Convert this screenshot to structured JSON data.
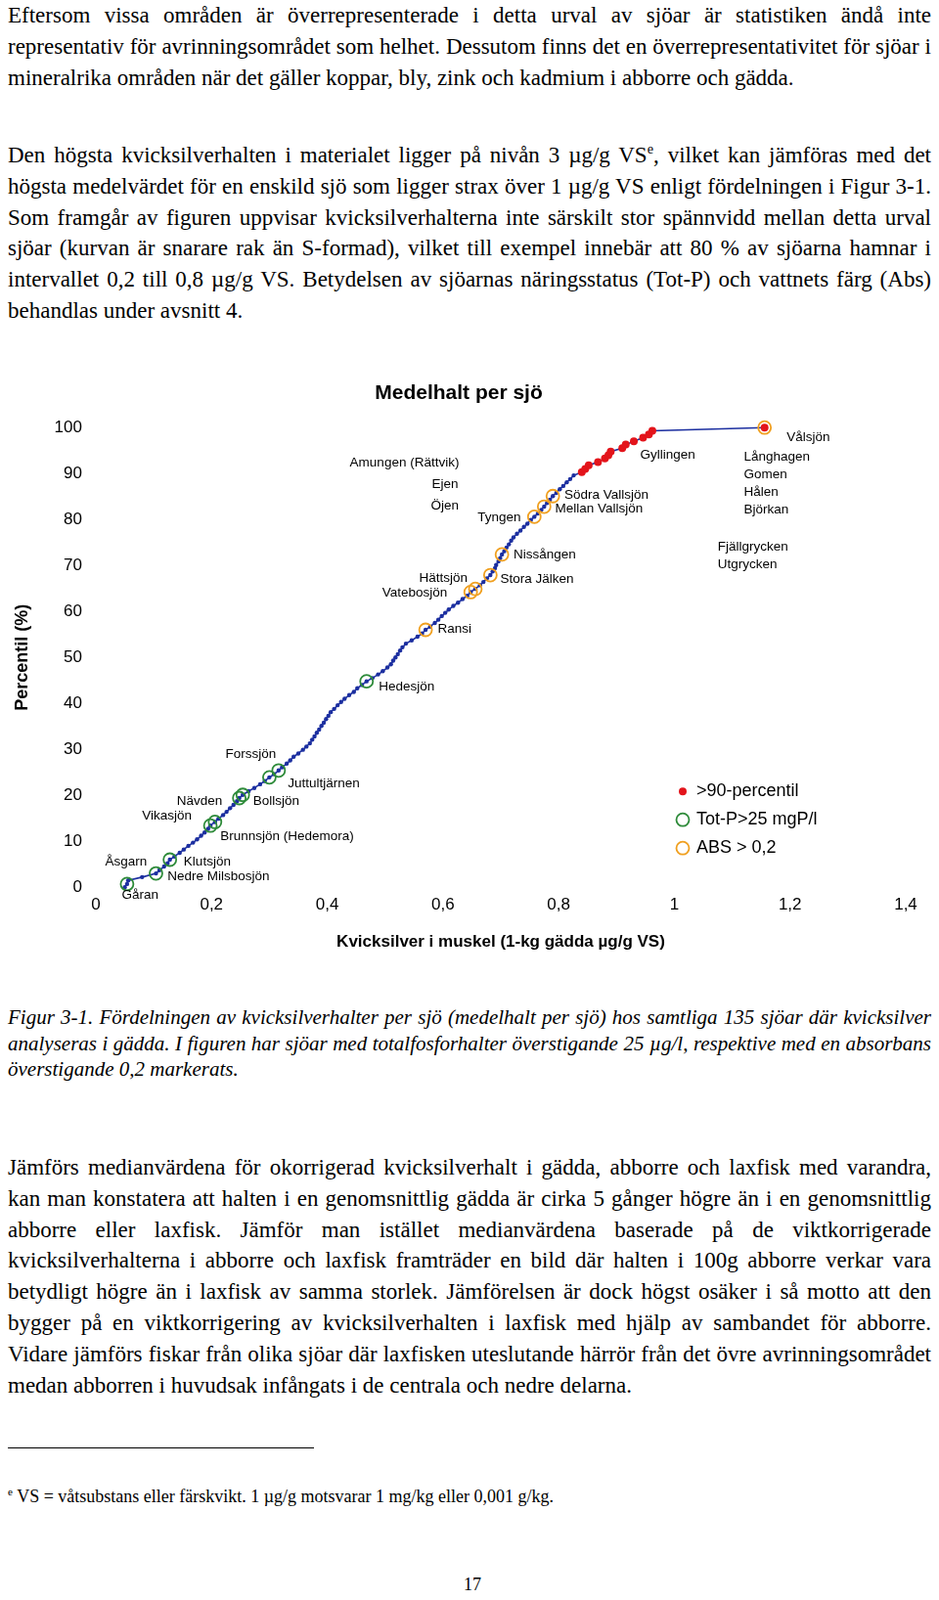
{
  "document": {
    "paragraph_1": "Eftersom vissa områden är överrepresenterade i detta urval av sjöar är statistiken ändå inte representativ för avrinningsområdet som helhet. Dessutom finns det en överrepresentativitet för sjöar i mineralrika områden när det gäller koppar, bly, zink och kadmium i abborre och gädda.",
    "paragraph_2": {
      "text_before": "Den högsta kvicksilverhalten i materialet ligger på nivån 3 µg/g VS",
      "mark": "e",
      "text_after": ", vilket kan jämföras med det högsta medelvärdet för en enskild sjö som ligger strax över 1 µg/g VS enligt fördelningen i Figur 3-1. Som framgår av figuren uppvisar kvicksilverhalterna inte särskilt stor spännvidd mellan detta urval sjöar (kurvan är snarare rak än S-formad), vilket till exempel innebär att 80 % av sjöarna hamnar i intervallet 0,2 till 0,8 µg/g VS. Betydelsen av sjöarnas näringsstatus (Tot-P) och vattnets färg (Abs) behandlas under avsnitt 4."
    },
    "caption": "Figur 3-1. Fördelningen av kvicksilverhalter per sjö (medelhalt per sjö) hos samtliga 135 sjöar där kvicksilver analyseras i gädda. I figuren har sjöar med totalfosforhalter överstigande 25 µg/l, respektive med en absorbans överstigande 0,2 markerats.",
    "paragraph_3": "Jämförs medianvärdena för okorrigerad kvicksilverhalt i gädda, abborre och laxfisk med varandra, kan man konstatera att halten i en genomsnittlig gädda är cirka 5 gånger högre än i en genomsnittlig abborre eller laxfisk. Jämför man istället medianvärdena baserade på de viktkorrigerade kvicksilverhalterna i abborre och laxfisk framträder en bild där halten i 100g abborre verkar vara betydligt högre än i laxfisk av samma storlek. Jämförelsen är dock högst osäker i så motto att den bygger på en viktkorrigering av kvicksilverhalten i laxfisk med hjälp av sambandet för abborre. Vidare jämförs fiskar från olika sjöar där laxfisken uteslutande härrör från det övre avrinningsområdet medan abborren i huvudsak infångats i de centrala och nedre delarna.",
    "footnote": {
      "mark": "e",
      "text": "VS = våtsubstans eller färskvikt. 1 µg/g motsvarar 1 mg/kg eller 0,001 g/kg."
    },
    "page_number": "17"
  },
  "chart_data": {
    "type": "scatter",
    "title": "Medelhalt per sjö",
    "x_label": "Kvicksilver i muskel (1-kg gädda µg/g VS)",
    "y_label": "Percentil (%)",
    "xlim": [
      0,
      1.4
    ],
    "xticks": [
      0,
      {
        "value": 0.2,
        "label": "0,2"
      },
      {
        "value": 0.4,
        "label": "0,4"
      },
      {
        "value": 0.6,
        "label": "0,6"
      },
      {
        "value": 0.8,
        "label": "0,8"
      },
      1,
      {
        "value": 1.2,
        "label": "1,2"
      },
      {
        "value": 1.4,
        "label": "1,4"
      }
    ],
    "ylim": [
      0,
      100
    ],
    "yticks": [
      0,
      10,
      20,
      30,
      40,
      50,
      60,
      70,
      80,
      90,
      100
    ],
    "grid": false,
    "legend": "lower right",
    "lakes": {
      "color": "#1c2fa0",
      "marker": "circle",
      "line_style": "solid",
      "x": [
        0.05,
        0.054,
        0.056,
        0.08,
        0.104,
        0.11,
        0.118,
        0.124,
        0.128,
        0.136,
        0.145,
        0.152,
        0.16,
        0.168,
        0.175,
        0.182,
        0.188,
        0.194,
        0.198,
        0.206,
        0.212,
        0.22,
        0.226,
        0.232,
        0.238,
        0.244,
        0.248,
        0.254,
        0.264,
        0.274,
        0.284,
        0.292,
        0.3,
        0.308,
        0.316,
        0.322,
        0.33,
        0.336,
        0.342,
        0.35,
        0.358,
        0.364,
        0.37,
        0.374,
        0.378,
        0.382,
        0.386,
        0.39,
        0.394,
        0.398,
        0.402,
        0.406,
        0.412,
        0.418,
        0.424,
        0.43,
        0.438,
        0.446,
        0.452,
        0.46,
        0.468,
        0.478,
        0.488,
        0.496,
        0.504,
        0.51,
        0.514,
        0.518,
        0.522,
        0.526,
        0.53,
        0.536,
        0.546,
        0.556,
        0.564,
        0.57,
        0.578,
        0.586,
        0.592,
        0.598,
        0.604,
        0.61,
        0.618,
        0.626,
        0.634,
        0.642,
        0.648,
        0.656,
        0.664,
        0.67,
        0.676,
        0.682,
        0.686,
        0.69,
        0.692,
        0.696,
        0.699,
        0.702,
        0.706,
        0.71,
        0.714,
        0.718,
        0.722,
        0.728,
        0.734,
        0.74,
        0.746,
        0.752,
        0.758,
        0.764,
        0.77,
        0.775,
        0.78,
        0.785,
        0.79,
        0.796,
        0.802,
        0.808,
        0.814,
        0.82,
        0.826,
        0.84,
        0.846,
        0.852,
        0.868,
        0.88,
        0.886,
        0.89,
        0.91,
        0.916,
        0.93,
        0.946,
        0.956,
        0.962,
        1.156
      ],
      "y": [
        0,
        0.7,
        1.5,
        2.2,
        3.0,
        3.7,
        4.5,
        5.2,
        6.0,
        6.7,
        7.5,
        8.2,
        9.0,
        9.7,
        10.4,
        11.2,
        11.9,
        12.7,
        13.4,
        14.2,
        14.9,
        15.7,
        16.4,
        17.2,
        17.9,
        18.7,
        19.4,
        20.1,
        20.9,
        21.6,
        22.4,
        23.1,
        23.9,
        24.6,
        25.4,
        26.1,
        26.9,
        27.6,
        28.4,
        29.1,
        29.9,
        30.6,
        31.3,
        32.1,
        32.8,
        33.6,
        34.3,
        35.1,
        35.8,
        36.6,
        37.3,
        38.1,
        38.8,
        39.6,
        40.3,
        41.0,
        41.8,
        42.5,
        43.3,
        44.0,
        44.8,
        45.5,
        46.3,
        47.0,
        47.8,
        48.5,
        49.3,
        50.0,
        50.7,
        51.5,
        52.2,
        53.0,
        53.7,
        54.5,
        55.2,
        56.0,
        56.7,
        57.5,
        58.2,
        59.0,
        59.7,
        60.4,
        61.2,
        61.9,
        62.7,
        63.4,
        64.2,
        64.9,
        65.7,
        66.4,
        67.2,
        67.9,
        68.7,
        69.4,
        70.1,
        70.9,
        71.6,
        72.4,
        73.1,
        73.9,
        74.6,
        75.4,
        76.1,
        76.9,
        77.6,
        78.4,
        79.1,
        79.9,
        80.6,
        81.3,
        82.1,
        82.8,
        83.6,
        84.3,
        85.1,
        85.8,
        86.6,
        87.3,
        88.1,
        88.8,
        89.6,
        90.3,
        91.0,
        91.8,
        92.5,
        93.3,
        94.0,
        94.8,
        95.5,
        96.3,
        97.0,
        97.8,
        98.5,
        99.3,
        100
      ]
    },
    "series": [
      {
        "name": ">90-percentil",
        "color": "#e3141b",
        "marker": "filled circle",
        "x": [
          0.84,
          0.846,
          0.852,
          0.868,
          0.88,
          0.886,
          0.89,
          0.91,
          0.916,
          0.93,
          0.946,
          0.956,
          0.962,
          1.156
        ],
        "y": [
          90.3,
          91.0,
          91.8,
          92.5,
          93.3,
          94.0,
          94.8,
          95.5,
          96.3,
          97.0,
          97.8,
          98.5,
          99.3,
          100
        ]
      },
      {
        "name": "Tot-P>25 mgP/l",
        "color": "#2e8b3a",
        "marker": "open circle",
        "x": [
          0.054,
          0.104,
          0.128,
          0.198,
          0.206,
          0.248,
          0.254,
          0.3,
          0.316,
          0.468
        ],
        "y": [
          0.7,
          3.0,
          6.0,
          13.4,
          14.2,
          19.4,
          20.1,
          23.9,
          25.4,
          44.8
        ]
      },
      {
        "name": "ABS > 0,2",
        "color": "#f0a020",
        "marker": "open circle",
        "x": [
          0.57,
          0.648,
          0.656,
          0.682,
          0.702,
          0.758,
          0.775,
          0.79,
          1.156
        ],
        "y": [
          56.0,
          64.2,
          64.9,
          67.9,
          72.4,
          80.6,
          82.8,
          85.1,
          100
        ]
      }
    ],
    "annotations": [
      {
        "text": "Gåran",
        "x": 0.045,
        "y": -1.8
      },
      {
        "text": "Åsgarn",
        "x": 0.016,
        "y": 5.6
      },
      {
        "text": "Nedre Milsbosjön",
        "x": 0.124,
        "y": 2.4
      },
      {
        "text": "Klutsjön",
        "x": 0.152,
        "y": 5.5
      },
      {
        "text": "Brunnsjön (Hedemora)",
        "x": 0.215,
        "y": 11.0
      },
      {
        "text": "Vikasjön",
        "x": 0.08,
        "y": 15.6
      },
      {
        "text": "Nävden",
        "x": 0.14,
        "y": 18.6
      },
      {
        "text": "Bollsjön",
        "x": 0.272,
        "y": 18.6
      },
      {
        "text": "Juttultjärnen",
        "x": 0.332,
        "y": 22.6
      },
      {
        "text": "Forssjön",
        "x": 0.224,
        "y": 29.0
      },
      {
        "text": "Hedesjön",
        "x": 0.489,
        "y": 43.7
      },
      {
        "text": "Ransi",
        "x": 0.591,
        "y": 56.1
      },
      {
        "text": "Vatebosjön",
        "x": 0.495,
        "y": 64.1
      },
      {
        "text": "Hättsjön",
        "x": 0.559,
        "y": 67.3
      },
      {
        "text": "Stora Jälken",
        "x": 0.699,
        "y": 67.0
      },
      {
        "text": "Nissången",
        "x": 0.722,
        "y": 72.4
      },
      {
        "text": "Tyngen",
        "x": 0.66,
        "y": 80.5
      },
      {
        "text": "Mellan Vallsjön",
        "x": 0.794,
        "y": 82.3
      },
      {
        "text": "Södra Vallsjön",
        "x": 0.81,
        "y": 85.2
      },
      {
        "text": "Amungen (Rättvik)",
        "x": 0.439,
        "y": 92.4
      },
      {
        "text": "Ejen",
        "x": 0.581,
        "y": 87.7
      },
      {
        "text": "Öjen",
        "x": 0.579,
        "y": 83.0
      },
      {
        "text": "Gyllingen",
        "x": 0.941,
        "y": 94.0
      },
      {
        "text": "Vålsjön",
        "x": 1.194,
        "y": 97.8
      },
      {
        "text": "Långhagen",
        "x": 1.12,
        "y": 93.5
      },
      {
        "text": "Gomen",
        "x": 1.12,
        "y": 89.7
      },
      {
        "text": "Hålen",
        "x": 1.12,
        "y": 85.9
      },
      {
        "text": "Björkan",
        "x": 1.12,
        "y": 82.1
      },
      {
        "text": "Fjällgrycken",
        "x": 1.075,
        "y": 74.0
      },
      {
        "text": "Utgrycken",
        "x": 1.075,
        "y": 70.2
      }
    ]
  }
}
